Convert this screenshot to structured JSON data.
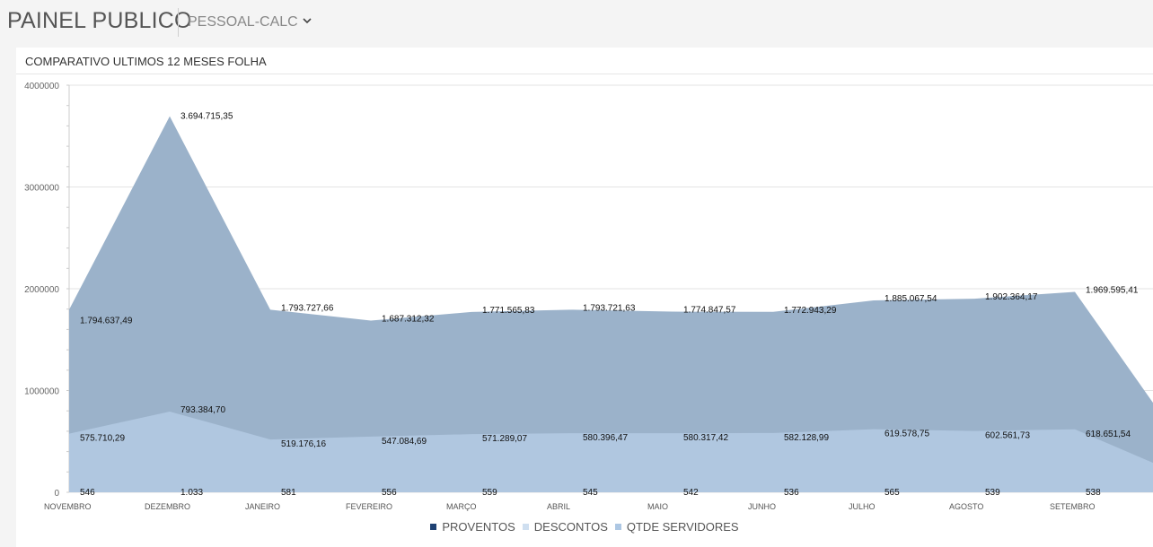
{
  "header": {
    "app_title": "PAINEL PUBLICO",
    "selector_value": "PESSOAL-CALC",
    "selector_icon": "chevron-down-icon"
  },
  "panel": {
    "title": "COMPARATIVO ULTIMOS 12 MESES FOLHA"
  },
  "legend": [
    {
      "label": "PROVENTOS",
      "color": "#1e4173"
    },
    {
      "label": "DESCONTOS",
      "color": "#cfdff0"
    },
    {
      "label": "QTDE SERVIDORES",
      "color": "#adc7e3"
    }
  ],
  "chart_data": {
    "type": "area",
    "title": "COMPARATIVO ULTIMOS 12 MESES FOLHA",
    "categories": [
      "NOVEMBRO",
      "DEZEMBRO",
      "JANEIRO",
      "FEVEREIRO",
      "MARÇO",
      "ABRIL",
      "MAIO",
      "JUNHO",
      "JULHO",
      "AGOSTO",
      "SETEMBRO"
    ],
    "ylim": [
      0,
      4000000
    ],
    "yticks": [
      "0",
      "1000000",
      "2000000",
      "3000000",
      "4000000"
    ],
    "grid": true,
    "legend_position": "bottom",
    "trailing_values": {
      "proventos": 880000,
      "descontos": 290000
    },
    "series": [
      {
        "name": "PROVENTOS",
        "values": [
          1794637.49,
          3694715.35,
          1793727.66,
          1687312.32,
          1771565.83,
          1793721.63,
          1774847.57,
          1772943.29,
          1885067.54,
          1902364.17,
          1969595.41
        ],
        "labels": [
          "1.794.637,49",
          "3.694.715,35",
          "1.793.727,66",
          "1.687.312,32",
          "1.771.565,83",
          "1.793.721,63",
          "1.774.847,57",
          "1.772.943,29",
          "1.885.067,54",
          "1.902.364,17",
          "1.969.595,41"
        ]
      },
      {
        "name": "DESCONTOS",
        "values": [
          575710.29,
          793384.7,
          519176.16,
          547084.69,
          571289.07,
          580396.47,
          580317.42,
          582128.99,
          619578.75,
          602561.73,
          618651.54
        ],
        "labels": [
          "575.710,29",
          "793.384,70",
          "519.176,16",
          "547.084,69",
          "571.289,07",
          "580.396,47",
          "580.317,42",
          "582.128,99",
          "619.578,75",
          "602.561,73",
          "618.651,54"
        ]
      },
      {
        "name": "QTDE SERVIDORES",
        "values": [
          546,
          1033,
          581,
          556,
          559,
          545,
          542,
          536,
          565,
          539,
          538
        ],
        "labels": [
          "546",
          "1.033",
          "581",
          "556",
          "559",
          "545",
          "542",
          "536",
          "565",
          "539",
          "538"
        ]
      }
    ]
  }
}
